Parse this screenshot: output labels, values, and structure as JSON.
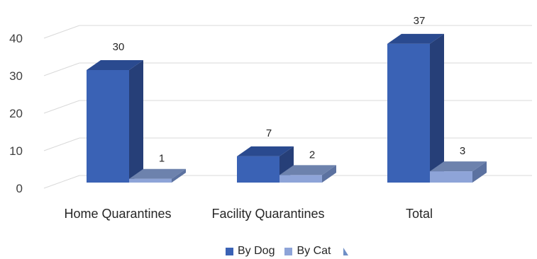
{
  "chart_data": {
    "type": "bar",
    "categories": [
      "Home Quarantines",
      "Facility Quarantines",
      "Total"
    ],
    "series": [
      {
        "name": "By Dog",
        "values": [
          30,
          7,
          37
        ],
        "color": "#3a62b5",
        "side_color": "#263f78",
        "top_color": "#2a4a8f"
      },
      {
        "name": "By Cat",
        "values": [
          1,
          2,
          3
        ],
        "color": "#8ea4d8",
        "side_color": "#5c72a0",
        "top_color": "#6d82ad"
      }
    ],
    "yticks": [
      0,
      10,
      20,
      30,
      40
    ],
    "ylim": [
      0,
      40
    ],
    "grid": true,
    "legend_position": "bottom",
    "title": "",
    "xlabel": "",
    "ylabel": ""
  }
}
